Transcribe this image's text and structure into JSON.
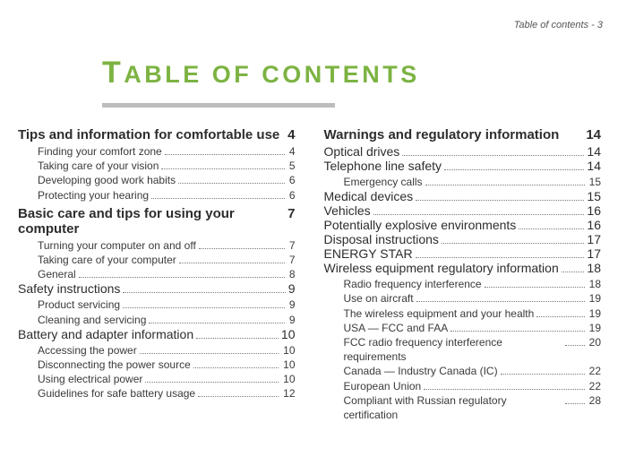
{
  "running_head": "Table of contents - 3",
  "title_cap_1": "T",
  "title_rest_1": "ABLE",
  "title_sp": " OF ",
  "title_cap_2": "",
  "title_rest_2": "CONTENTS",
  "left": {
    "s1": {
      "title": "Tips and information for comfortable use",
      "page": "4",
      "items": [
        {
          "t": "Finding your comfort zone",
          "p": "4"
        },
        {
          "t": "Taking care of your vision",
          "p": "5"
        },
        {
          "t": "Developing good work habits",
          "p": "6"
        },
        {
          "t": "Protecting your hearing",
          "p": "6"
        }
      ]
    },
    "s2": {
      "title": "Basic care and tips for using your computer",
      "page": "7",
      "items": [
        {
          "t": "Turning your computer on and off",
          "p": "7"
        },
        {
          "t": "Taking care of your computer",
          "p": "7"
        },
        {
          "t": "General",
          "p": "8"
        }
      ]
    },
    "h2a": {
      "t": "Safety instructions",
      "p": "9"
    },
    "s3items": [
      {
        "t": "Product servicing",
        "p": "9"
      },
      {
        "t": "Cleaning and servicing",
        "p": "9"
      }
    ],
    "h2b": {
      "t": "Battery and adapter information",
      "p": "10"
    },
    "s4items": [
      {
        "t": "Accessing the power",
        "p": "10"
      },
      {
        "t": "Disconnecting the power source",
        "p": "10"
      },
      {
        "t": "Using electrical power",
        "p": "10"
      },
      {
        "t": "Guidelines for safe battery usage",
        "p": "12"
      }
    ]
  },
  "right": {
    "s1": {
      "title": "Warnings and regulatory information",
      "page": "14"
    },
    "h2list": [
      {
        "t": "Optical drives",
        "p": "14"
      },
      {
        "t": "Telephone line safety",
        "p": "14"
      }
    ],
    "sub1": [
      {
        "t": "Emergency calls",
        "p": "15"
      }
    ],
    "h2list2": [
      {
        "t": "Medical devices",
        "p": "15"
      },
      {
        "t": "Vehicles",
        "p": "16"
      },
      {
        "t": "Potentially explosive environments",
        "p": "16"
      },
      {
        "t": "Disposal instructions",
        "p": "17"
      },
      {
        "t": "ENERGY STAR",
        "p": "17"
      }
    ],
    "h2wrap": {
      "t": "Wireless equipment regulatory information",
      "p": "18"
    },
    "sub2": [
      {
        "t": "Radio frequency interference",
        "p": "18"
      },
      {
        "t": "Use on aircraft",
        "p": "19"
      },
      {
        "t": "The wireless equipment and your health",
        "p": "19"
      },
      {
        "t": "USA — FCC and FAA",
        "p": "19"
      },
      {
        "t": "FCC radio frequency interference requirements",
        "p": "20"
      },
      {
        "t": "Canada — Industry Canada (IC)",
        "p": "22"
      },
      {
        "t": "European Union",
        "p": "22"
      },
      {
        "t": "Compliant with Russian regulatory certification",
        "p": "28"
      }
    ]
  }
}
